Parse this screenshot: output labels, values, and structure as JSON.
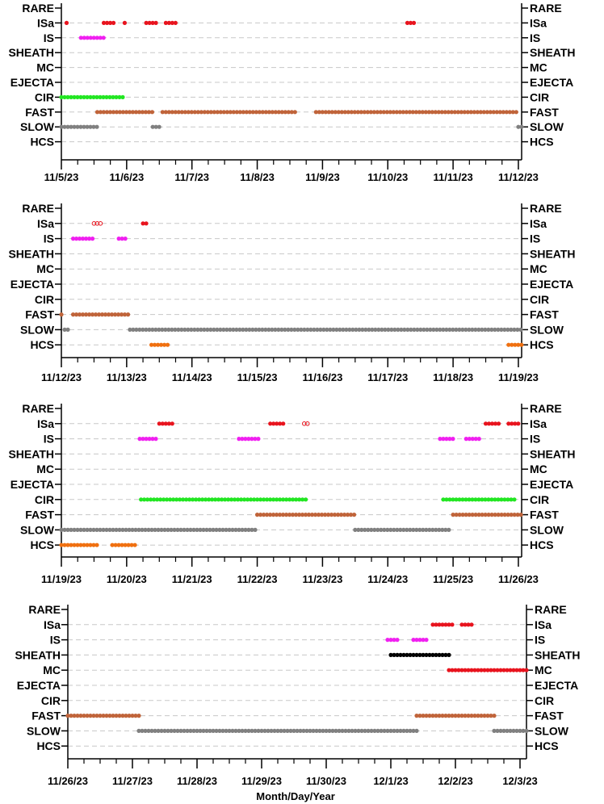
{
  "chart_data": [
    {
      "type": "scatter",
      "categories": [
        "RARE",
        "ISa",
        "IS",
        "SHEATH",
        "MC",
        "EJECTA",
        "CIR",
        "FAST",
        "SLOW",
        "HCS"
      ],
      "x_ticks": [
        "11/5/23",
        "11/6/23",
        "11/7/23",
        "11/8/23",
        "11/9/23",
        "11/10/23",
        "11/11/23",
        "11/12/23"
      ],
      "xlim": [
        0,
        7.05
      ],
      "grid": true,
      "series": [
        {
          "category": "ISa",
          "color": "#e8141e",
          "marker": "filled",
          "segments": [
            [
              0.08,
              0.1
            ],
            [
              0.65,
              0.82
            ],
            [
              0.97,
              0.99
            ],
            [
              1.3,
              1.45
            ],
            [
              1.6,
              1.75
            ],
            [
              5.3,
              5.42
            ]
          ]
        },
        {
          "category": "IS",
          "color": "#f020f0",
          "marker": "filled",
          "segments": [
            [
              0.3,
              0.65
            ]
          ]
        },
        {
          "category": "CIR",
          "color": "#22e622",
          "marker": "filled",
          "segments": [
            [
              0.0,
              0.95
            ]
          ]
        },
        {
          "category": "FAST",
          "color": "#c0643a",
          "marker": "filled",
          "segments": [
            [
              0.55,
              1.4
            ],
            [
              1.55,
              3.6
            ],
            [
              3.9,
              7.0
            ]
          ]
        },
        {
          "category": "SLOW",
          "color": "#808080",
          "marker": "filled",
          "segments": [
            [
              0.0,
              0.55
            ],
            [
              1.4,
              1.5
            ],
            [
              7.0,
              7.05
            ]
          ]
        }
      ]
    },
    {
      "type": "scatter",
      "categories": [
        "RARE",
        "ISa",
        "IS",
        "SHEATH",
        "MC",
        "EJECTA",
        "CIR",
        "FAST",
        "SLOW",
        "HCS"
      ],
      "x_ticks": [
        "11/12/23",
        "11/13/23",
        "11/14/23",
        "11/15/23",
        "11/16/23",
        "11/17/23",
        "11/18/23",
        "11/19/23"
      ],
      "xlim": [
        0,
        7.05
      ],
      "grid": true,
      "series": [
        {
          "category": "ISa",
          "color": "#e8141e",
          "marker": "open",
          "segments": [
            [
              0.5,
              0.6
            ]
          ]
        },
        {
          "category": "ISa",
          "color": "#e8141e",
          "marker": "filled",
          "segments": [
            [
              1.25,
              1.32
            ]
          ]
        },
        {
          "category": "IS",
          "color": "#f020f0",
          "marker": "filled",
          "segments": [
            [
              0.18,
              0.48
            ],
            [
              0.88,
              0.98
            ]
          ]
        },
        {
          "category": "FAST",
          "color": "#c0643a",
          "marker": "filled",
          "segments": [
            [
              0.0,
              0.02
            ],
            [
              0.18,
              1.05
            ]
          ]
        },
        {
          "category": "SLOW",
          "color": "#808080",
          "marker": "filled",
          "segments": [
            [
              0.05,
              0.12
            ],
            [
              1.05,
              7.05
            ]
          ]
        },
        {
          "category": "HCS",
          "color": "#f07010",
          "marker": "filled",
          "segments": [
            [
              1.38,
              1.65
            ],
            [
              6.85,
              7.05
            ]
          ]
        }
      ]
    },
    {
      "type": "scatter",
      "categories": [
        "RARE",
        "ISa",
        "IS",
        "SHEATH",
        "MC",
        "EJECTA",
        "CIR",
        "FAST",
        "SLOW",
        "HCS"
      ],
      "x_ticks": [
        "11/19/23",
        "11/20/23",
        "11/21/23",
        "11/22/23",
        "11/23/23",
        "11/24/23",
        "11/25/23",
        "11/26/23"
      ],
      "xlim": [
        0,
        7.05
      ],
      "grid": true,
      "series": [
        {
          "category": "ISa",
          "color": "#e8141e",
          "marker": "filled",
          "segments": [
            [
              1.5,
              1.7
            ],
            [
              3.2,
              3.4
            ],
            [
              6.5,
              6.7
            ],
            [
              6.85,
              7.0
            ]
          ]
        },
        {
          "category": "ISa",
          "color": "#e8141e",
          "marker": "open",
          "segments": [
            [
              3.72,
              3.78
            ]
          ]
        },
        {
          "category": "IS",
          "color": "#f020f0",
          "marker": "filled",
          "segments": [
            [
              1.2,
              1.45
            ],
            [
              2.72,
              3.05
            ],
            [
              5.8,
              6.0
            ],
            [
              6.2,
              6.4
            ]
          ]
        },
        {
          "category": "CIR",
          "color": "#22e622",
          "marker": "filled",
          "segments": [
            [
              1.22,
              3.75
            ],
            [
              5.85,
              6.95
            ]
          ]
        },
        {
          "category": "FAST",
          "color": "#c0643a",
          "marker": "filled",
          "segments": [
            [
              3.0,
              4.5
            ],
            [
              6.0,
              7.05
            ]
          ]
        },
        {
          "category": "SLOW",
          "color": "#808080",
          "marker": "filled",
          "segments": [
            [
              0.0,
              3.0
            ],
            [
              4.5,
              5.95
            ]
          ]
        },
        {
          "category": "HCS",
          "color": "#f07010",
          "marker": "filled",
          "segments": [
            [
              0.0,
              0.55
            ],
            [
              0.78,
              1.15
            ]
          ]
        }
      ]
    },
    {
      "type": "scatter",
      "categories": [
        "RARE",
        "ISa",
        "IS",
        "SHEATH",
        "MC",
        "EJECTA",
        "CIR",
        "FAST",
        "SLOW",
        "HCS"
      ],
      "x_ticks": [
        "11/26/23",
        "11/27/23",
        "11/28/23",
        "11/29/23",
        "11/30/23",
        "12/1/23",
        "12/2/23",
        "12/3/23"
      ],
      "xlabel": "Month/Day/Year",
      "xlim": [
        0,
        7.1
      ],
      "grid": true,
      "series": [
        {
          "category": "ISa",
          "color": "#e8141e",
          "marker": "filled",
          "segments": [
            [
              5.65,
              5.95
            ],
            [
              6.1,
              6.25
            ]
          ]
        },
        {
          "category": "IS",
          "color": "#f020f0",
          "marker": "filled",
          "segments": [
            [
              4.95,
              5.1
            ],
            [
              5.35,
              5.55
            ]
          ]
        },
        {
          "category": "SHEATH",
          "color": "#000000",
          "marker": "filled",
          "segments": [
            [
              5.0,
              5.9
            ]
          ]
        },
        {
          "category": "MC",
          "color": "#e8141e",
          "marker": "filled",
          "segments": [
            [
              5.9,
              7.1
            ]
          ]
        },
        {
          "category": "FAST",
          "color": "#c0643a",
          "marker": "filled",
          "segments": [
            [
              0.0,
              1.1
            ],
            [
              5.4,
              6.6
            ]
          ]
        },
        {
          "category": "SLOW",
          "color": "#808080",
          "marker": "filled",
          "segments": [
            [
              1.1,
              5.4
            ],
            [
              6.6,
              7.1
            ]
          ]
        }
      ]
    }
  ]
}
